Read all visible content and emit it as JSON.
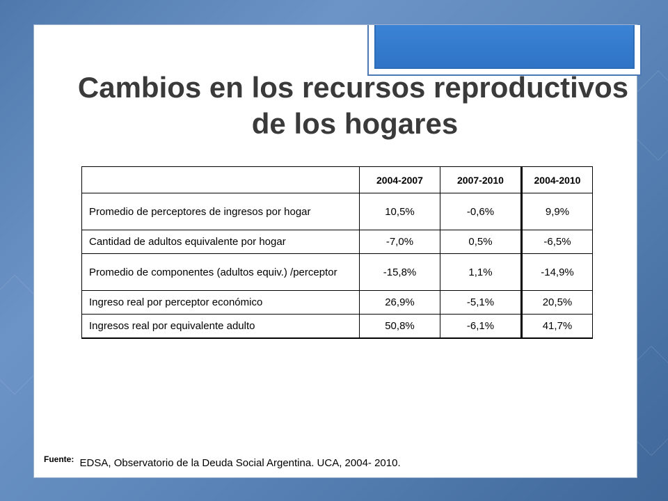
{
  "slide": {
    "title_line1": "Cambios en los recursos reproductivos",
    "title_line2": "de los hogares"
  },
  "table": {
    "headers": [
      "",
      "2004-2007",
      "2007-2010",
      "2004-2010"
    ],
    "rows": [
      [
        "Promedio de perceptores de ingresos por hogar",
        "10,5%",
        "-0,6%",
        "9,9%"
      ],
      [
        "Cantidad de adultos equivalente por hogar",
        "-7,0%",
        "0,5%",
        "-6,5%"
      ],
      [
        "Promedio de componentes  (adultos equiv.) /perceptor",
        "-15,8%",
        "1,1%",
        "-14,9%"
      ],
      [
        "Ingreso real por perceptor económico",
        "26,9%",
        "-5,1%",
        "20,5%"
      ],
      [
        "Ingresos real por equivalente adulto",
        "50,8%",
        "-6,1%",
        "41,7%"
      ]
    ]
  },
  "footer": {
    "label": "Fuente:",
    "text": "EDSA, Observatorio de la Deuda Social Argentina. UCA, 2004- 2010."
  }
}
